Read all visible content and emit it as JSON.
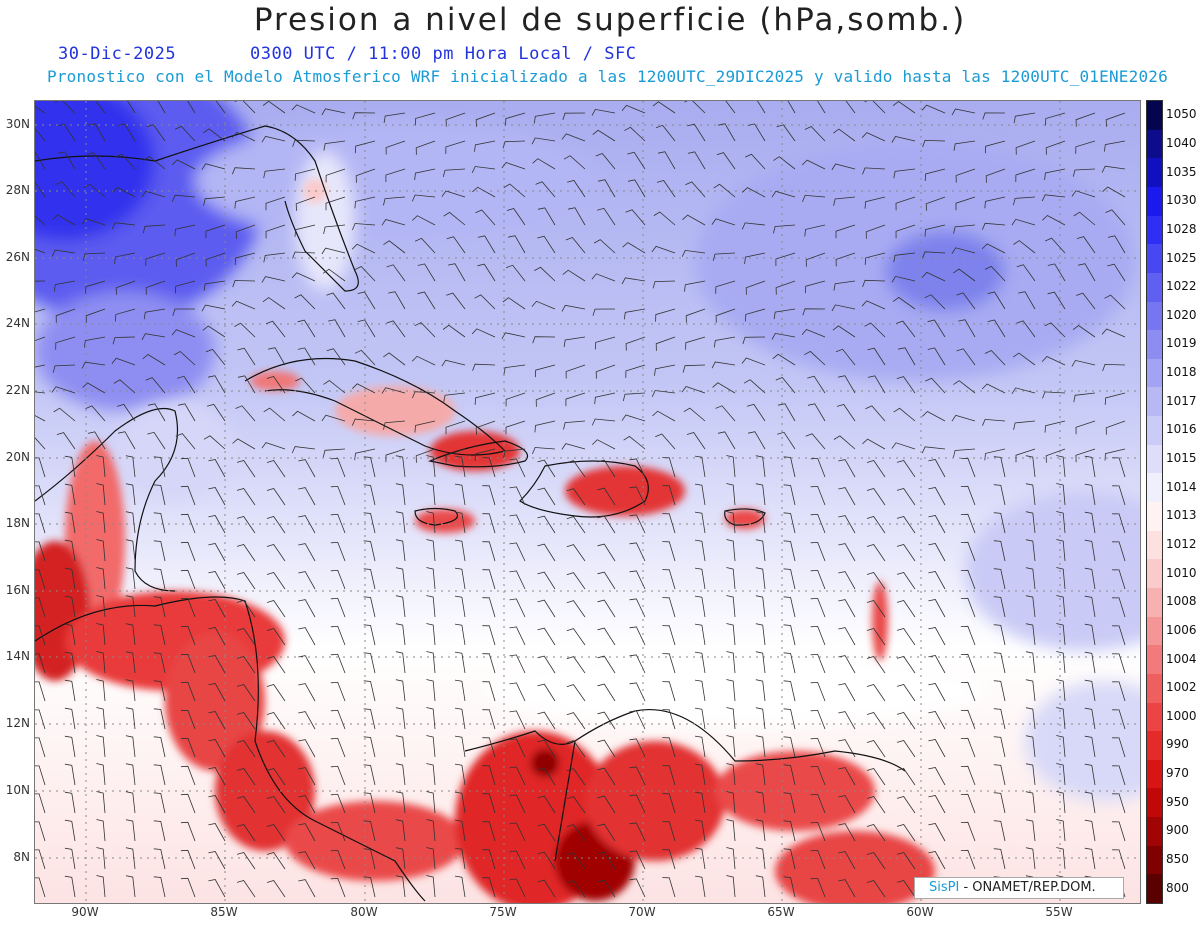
{
  "header": {
    "title": "Presion a nivel de superficie (hPa,somb.)",
    "date": "30-Dic-2025",
    "time": "0300 UTC / 11:00 pm Hora Local / SFC",
    "model": "Pronostico con el Modelo Atmosferico WRF inicializado a las 1200UTC_29DIC2025 y valido hasta las  1200UTC_01ENE2026"
  },
  "map": {
    "lat_labels": [
      "30N",
      "28N",
      "26N",
      "24N",
      "22N",
      "20N",
      "18N",
      "16N",
      "14N",
      "12N",
      "10N",
      "8N"
    ],
    "lon_labels": [
      "90W",
      "85W",
      "80W",
      "75W",
      "70W",
      "65W",
      "60W",
      "55W"
    ],
    "credit_brand": "SisPI",
    "credit_text": "- ONAMET/REP.DOM."
  },
  "colorbar": {
    "labels": [
      "1050",
      "1040",
      "1035",
      "1030",
      "1028",
      "1025",
      "1022",
      "1020",
      "1019",
      "1018",
      "1017",
      "1016",
      "1015",
      "1014",
      "1013",
      "1012",
      "1010",
      "1008",
      "1006",
      "1004",
      "1002",
      "1000",
      "990",
      "970",
      "950",
      "900",
      "850",
      "800"
    ],
    "colors": [
      "#05054f",
      "#0c0c8c",
      "#1010c0",
      "#1a1aee",
      "#2e2ef5",
      "#4848f3",
      "#5f5ff1",
      "#7676f0",
      "#8d8df1",
      "#a3a3f3",
      "#b8b8f5",
      "#cbcbf8",
      "#dedefb",
      "#f0f0fd",
      "#fff2f2",
      "#fde0e0",
      "#fbcaca",
      "#f8b1b1",
      "#f59696",
      "#f27a7a",
      "#ef5f5f",
      "#ec4444",
      "#e52a2a",
      "#d81414",
      "#c00808",
      "#a00404",
      "#800000",
      "#5a0000"
    ]
  }
}
